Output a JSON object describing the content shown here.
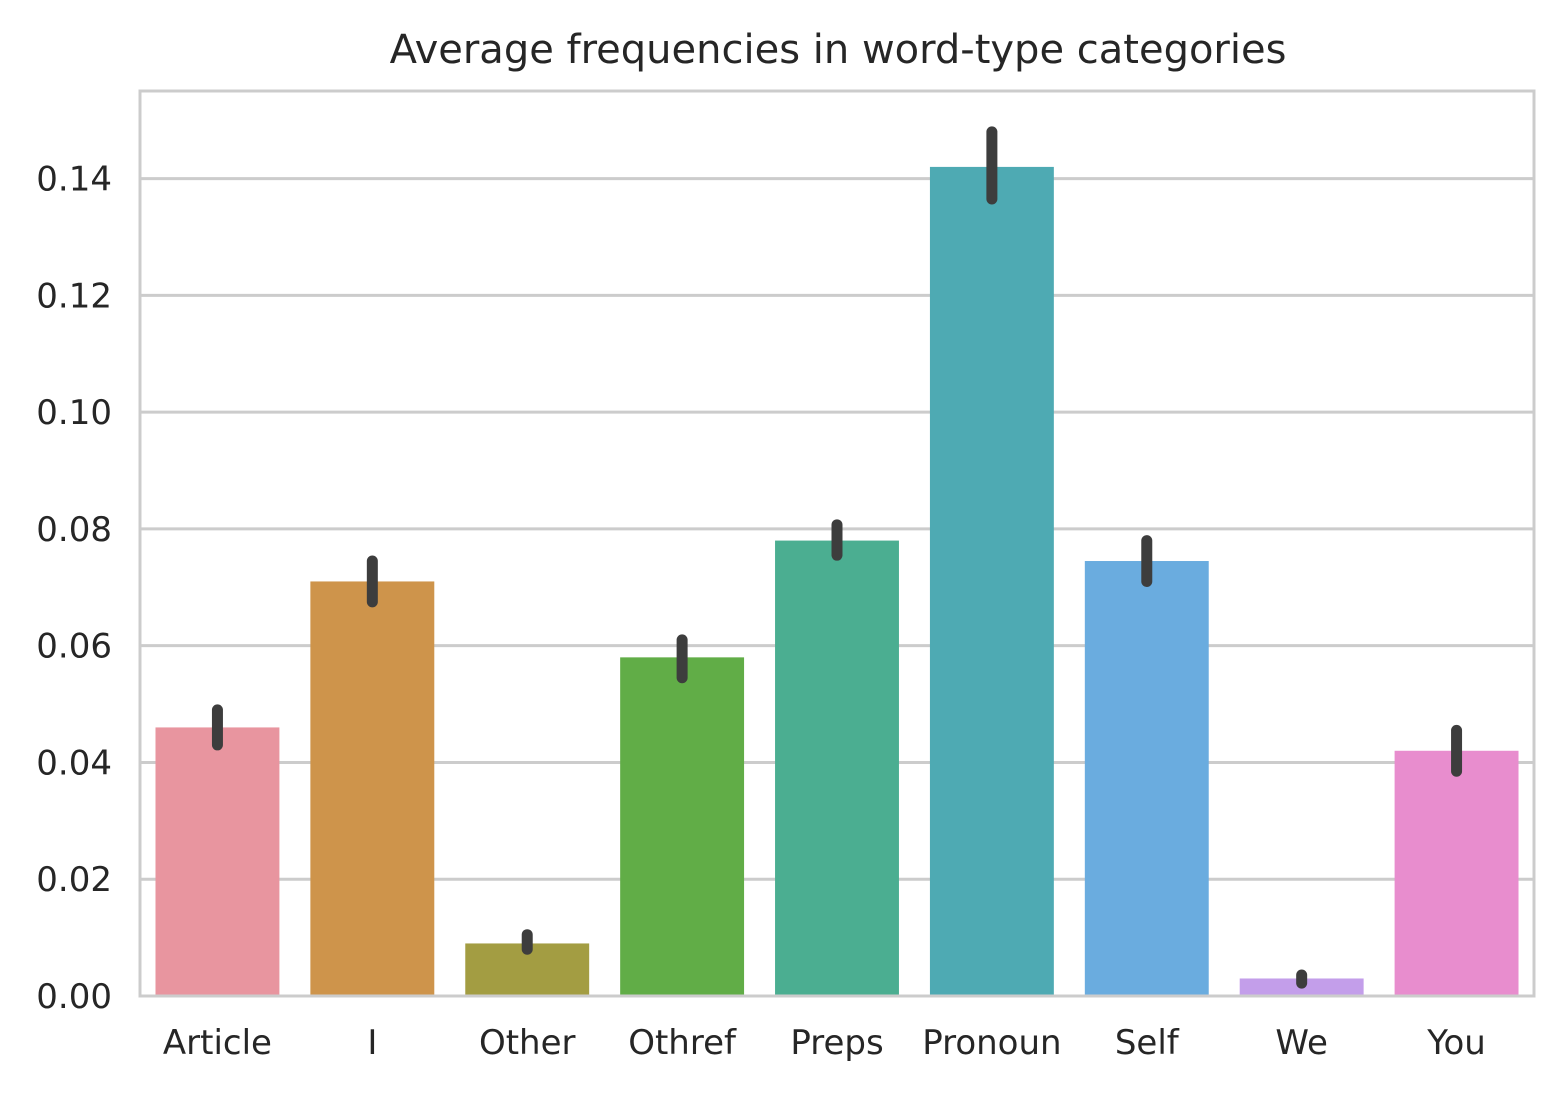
{
  "chart_data": {
    "type": "bar",
    "title": "Average frequencies in word-type categories",
    "xlabel": "",
    "ylabel": "",
    "ylim": [
      0,
      0.155
    ],
    "grid": true,
    "yticks": [
      0.0,
      0.02,
      0.04,
      0.06,
      0.08,
      0.1,
      0.12,
      0.14
    ],
    "ytick_labels": [
      "0.00",
      "0.02",
      "0.04",
      "0.06",
      "0.08",
      "0.10",
      "0.12",
      "0.14"
    ],
    "categories": [
      "Article",
      "I",
      "Other",
      "Othref",
      "Preps",
      "Pronoun",
      "Self",
      "We",
      "You"
    ],
    "values": [
      0.046,
      0.071,
      0.009,
      0.058,
      0.078,
      0.142,
      0.0745,
      0.003,
      0.042
    ],
    "error_low": [
      0.043,
      0.0675,
      0.008,
      0.0545,
      0.0755,
      0.1365,
      0.071,
      0.0022,
      0.0385
    ],
    "error_high": [
      0.049,
      0.0745,
      0.0105,
      0.061,
      0.0807,
      0.148,
      0.078,
      0.0036,
      0.0455
    ],
    "colors": [
      "#e8959f",
      "#ce944b",
      "#a39d42",
      "#61ad47",
      "#4bae91",
      "#4eaab3",
      "#6aacdf",
      "#c39eea",
      "#e88dce"
    ],
    "error_color": "#3d3d3d"
  }
}
